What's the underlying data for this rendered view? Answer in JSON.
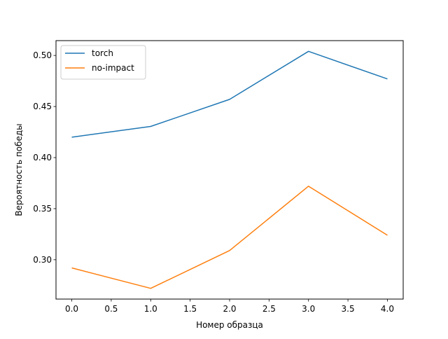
{
  "chart_data": {
    "type": "line",
    "title": "",
    "xlabel": "Номер образца",
    "ylabel": "Вероятность победы",
    "x": [
      0,
      1,
      2,
      3,
      4
    ],
    "xlim": [
      -0.2,
      4.2
    ],
    "ylim": [
      0.2615,
      0.5145
    ],
    "xticks": [
      "0.0",
      "0.5",
      "1.0",
      "1.5",
      "2.0",
      "2.5",
      "3.0",
      "3.5",
      "4.0"
    ],
    "yticks": [
      "0.30",
      "0.35",
      "0.40",
      "0.45",
      "0.50"
    ],
    "grid": false,
    "legend_position": "upper-left",
    "series": [
      {
        "name": "torch",
        "color": "#1f77b4",
        "values": [
          0.42,
          0.4305,
          0.457,
          0.504,
          0.477
        ]
      },
      {
        "name": "no-impact",
        "color": "#ff7f0e",
        "values": [
          0.292,
          0.272,
          0.309,
          0.372,
          0.324
        ]
      }
    ]
  }
}
